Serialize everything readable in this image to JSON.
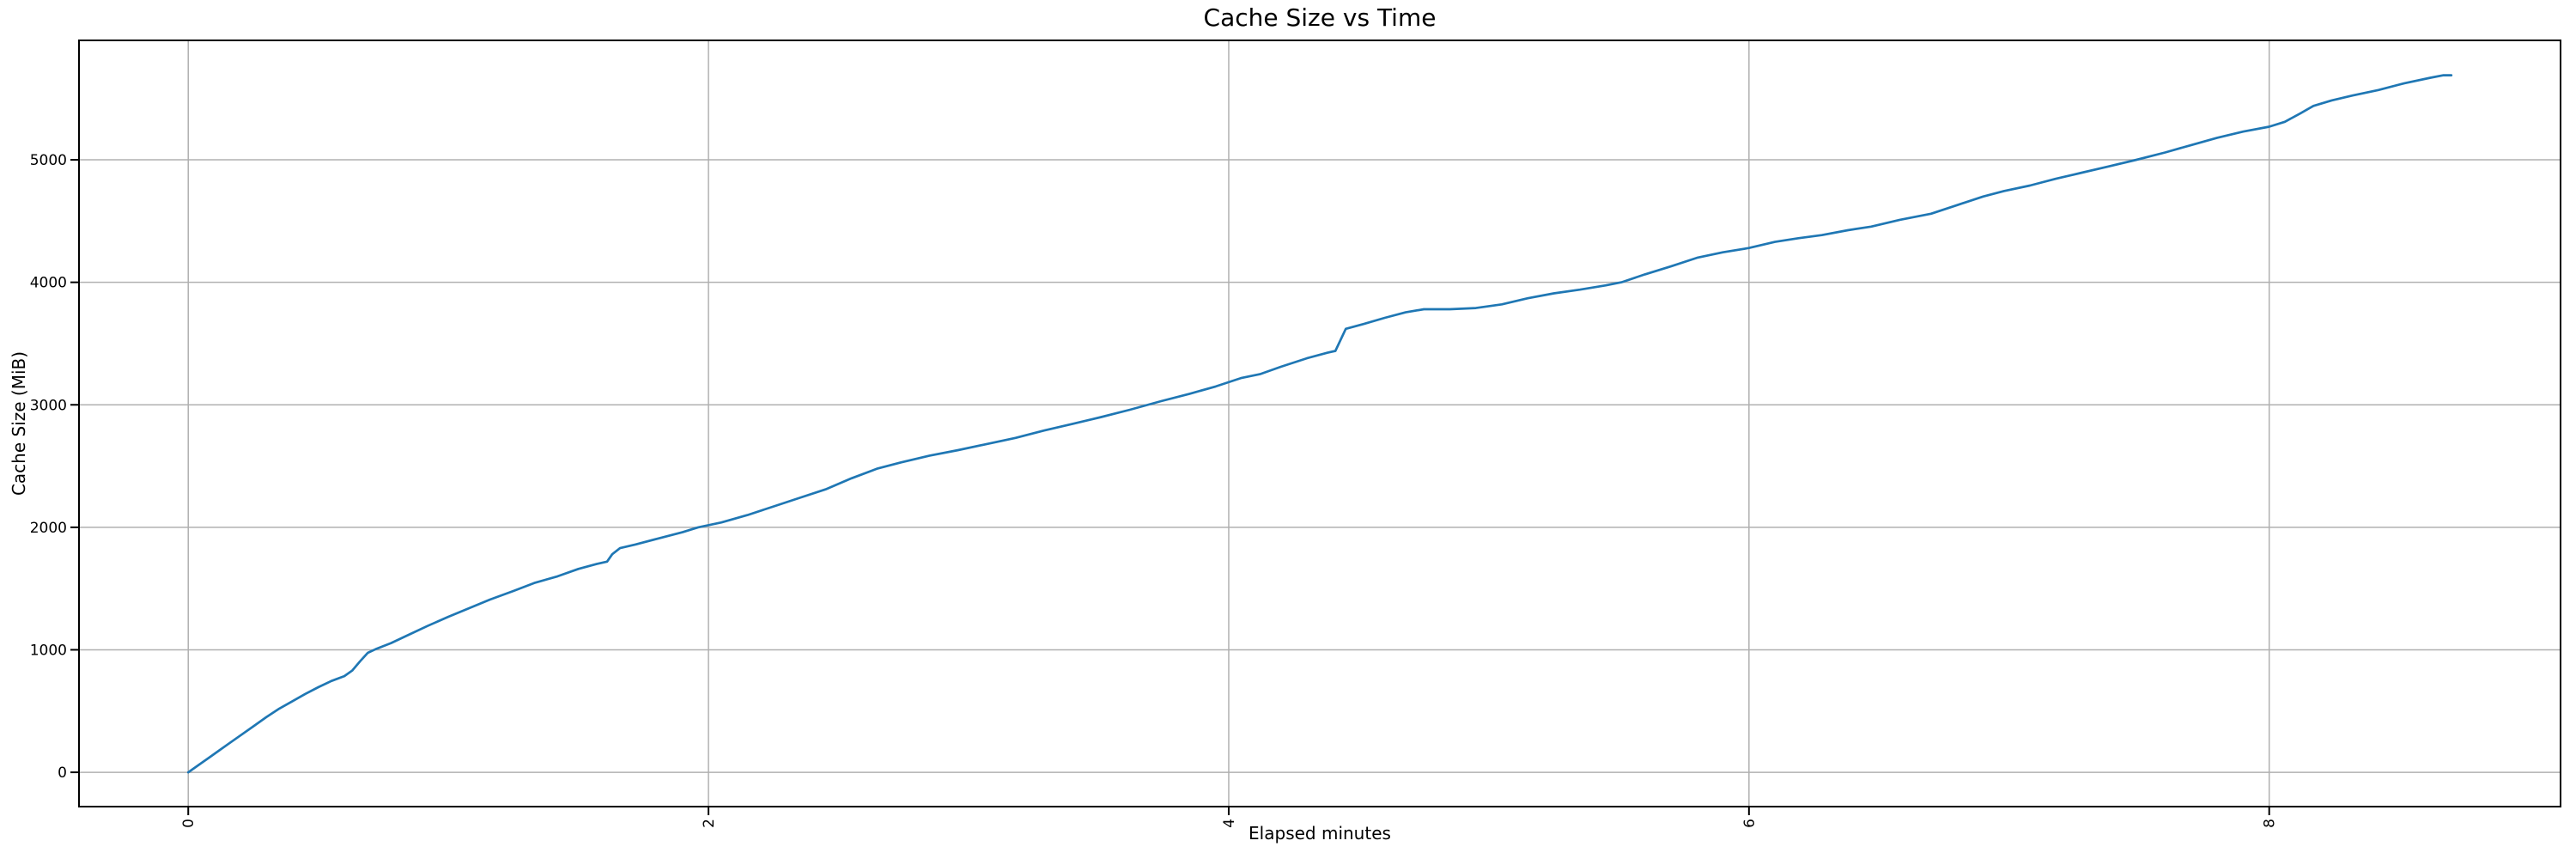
{
  "colors": {
    "line": "#1f77b4",
    "grid": "#b0b0b0",
    "spine": "#000000",
    "background": "#ffffff",
    "text": "#000000"
  },
  "chart_data": {
    "type": "line",
    "title": "Cache Size vs Time",
    "xlabel": "Elapsed minutes",
    "ylabel": "Cache Size (MiB)",
    "x_ticks": [
      0,
      2,
      4,
      6,
      8
    ],
    "y_ticks": [
      0,
      1000,
      2000,
      3000,
      4000,
      5000
    ],
    "xlim": [
      -0.42,
      9.12
    ],
    "ylim": [
      -280,
      5975
    ],
    "grid": true,
    "legend": null,
    "tick_label_rotation_x": 90,
    "series": [
      {
        "name": "Cache Size",
        "x": [
          0.0,
          0.04,
          0.08,
          0.12,
          0.16,
          0.2,
          0.25,
          0.3,
          0.35,
          0.4,
          0.45,
          0.5,
          0.55,
          0.6,
          0.63,
          0.66,
          0.69,
          0.72,
          0.78,
          0.85,
          0.92,
          1.0,
          1.08,
          1.16,
          1.25,
          1.33,
          1.42,
          1.5,
          1.57,
          1.61,
          1.63,
          1.66,
          1.72,
          1.8,
          1.9,
          1.96,
          2.05,
          2.15,
          2.25,
          2.35,
          2.45,
          2.55,
          2.65,
          2.74,
          2.85,
          2.96,
          3.07,
          3.18,
          3.29,
          3.4,
          3.51,
          3.62,
          3.74,
          3.85,
          3.95,
          4.05,
          4.12,
          4.2,
          4.3,
          4.38,
          4.41,
          4.45,
          4.52,
          4.6,
          4.68,
          4.75,
          4.85,
          4.95,
          5.05,
          5.15,
          5.25,
          5.35,
          5.45,
          5.51,
          5.6,
          5.7,
          5.8,
          5.9,
          6.0,
          6.1,
          6.19,
          6.28,
          6.38,
          6.47,
          6.58,
          6.7,
          6.8,
          6.9,
          6.98,
          7.08,
          7.18,
          7.28,
          7.38,
          7.49,
          7.6,
          7.7,
          7.8,
          7.9,
          8.0,
          8.06,
          8.12,
          8.17,
          8.24,
          8.32,
          8.42,
          8.52,
          8.62,
          8.67,
          8.7
        ],
        "y": [
          0,
          60,
          120,
          180,
          240,
          300,
          375,
          450,
          520,
          580,
          640,
          695,
          745,
          785,
          830,
          905,
          975,
          1005,
          1055,
          1125,
          1195,
          1270,
          1340,
          1410,
          1480,
          1545,
          1600,
          1660,
          1700,
          1720,
          1780,
          1830,
          1860,
          1905,
          1960,
          2000,
          2040,
          2100,
          2170,
          2240,
          2310,
          2400,
          2480,
          2530,
          2585,
          2630,
          2680,
          2730,
          2790,
          2845,
          2900,
          2960,
          3030,
          3090,
          3150,
          3220,
          3250,
          3310,
          3380,
          3425,
          3440,
          3620,
          3660,
          3710,
          3755,
          3780,
          3780,
          3790,
          3820,
          3870,
          3910,
          3940,
          3975,
          4000,
          4065,
          4130,
          4200,
          4245,
          4280,
          4330,
          4360,
          4385,
          4425,
          4455,
          4510,
          4560,
          4630,
          4700,
          4745,
          4790,
          4845,
          4895,
          4945,
          5000,
          5060,
          5120,
          5180,
          5230,
          5270,
          5310,
          5380,
          5440,
          5485,
          5525,
          5570,
          5625,
          5670,
          5690,
          5690
        ]
      }
    ]
  }
}
